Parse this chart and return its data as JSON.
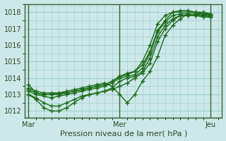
{
  "bg_color": "#cce8e8",
  "grid_color": "#99cccc",
  "line_color": "#1a6b1a",
  "marker": "+",
  "marker_size": 5,
  "linewidth": 1.0,
  "ylabel_ticks": [
    1012,
    1013,
    1014,
    1015,
    1016,
    1017,
    1018
  ],
  "ylim": [
    1011.6,
    1018.5
  ],
  "xlabel": "Pression niveau de la mer( hPa )",
  "xtick_labels": [
    "Mar",
    "Mer",
    "Jeu"
  ],
  "xtick_positions": [
    0,
    12,
    24
  ],
  "xlim": [
    -0.5,
    25.5
  ],
  "num_points": 25,
  "series": [
    [
      1013.6,
      1013.1,
      1013.0,
      1013.0,
      1013.0,
      1013.1,
      1013.2,
      1013.3,
      1013.4,
      1013.5,
      1013.6,
      1013.8,
      1014.1,
      1014.3,
      1014.4,
      1015.0,
      1016.0,
      1017.3,
      1017.8,
      1018.0,
      1018.0,
      1018.0,
      1018.0,
      1017.9,
      1017.9
    ],
    [
      1013.2,
      1013.0,
      1012.9,
      1012.8,
      1012.9,
      1013.0,
      1013.1,
      1013.2,
      1013.3,
      1013.4,
      1013.5,
      1013.7,
      1014.0,
      1014.1,
      1014.2,
      1014.6,
      1015.5,
      1016.8,
      1017.4,
      1017.8,
      1017.9,
      1017.9,
      1017.9,
      1017.8,
      1017.8
    ],
    [
      1013.0,
      1012.8,
      1012.5,
      1012.3,
      1012.3,
      1012.5,
      1012.7,
      1012.9,
      1013.0,
      1013.1,
      1013.2,
      1013.4,
      1013.8,
      1014.0,
      1014.1,
      1014.4,
      1015.2,
      1016.5,
      1017.2,
      1017.6,
      1017.8,
      1017.8,
      1017.8,
      1017.8,
      1017.7
    ],
    [
      1013.0,
      1012.7,
      1012.2,
      1012.0,
      1012.0,
      1012.2,
      1012.5,
      1012.8,
      1013.0,
      1013.1,
      1013.2,
      1013.3,
      1013.5,
      1013.7,
      1014.0,
      1014.3,
      1014.9,
      1016.2,
      1017.0,
      1017.5,
      1017.8,
      1017.8,
      1017.8,
      1017.7,
      1017.7
    ],
    [
      1013.4,
      1013.2,
      1013.1,
      1013.1,
      1013.1,
      1013.1,
      1013.2,
      1013.3,
      1013.4,
      1013.5,
      1013.6,
      1013.8,
      1014.1,
      1014.2,
      1014.4,
      1014.8,
      1015.6,
      1016.9,
      1017.5,
      1018.0,
      1018.1,
      1018.1,
      1018.0,
      1018.0,
      1017.9
    ],
    [
      1013.3,
      1013.1,
      1013.0,
      1013.0,
      1013.1,
      1013.2,
      1013.3,
      1013.4,
      1013.5,
      1013.6,
      1013.7,
      1013.5,
      1013.0,
      1012.5,
      1013.0,
      1013.8,
      1014.4,
      1015.3,
      1016.6,
      1017.2,
      1017.6,
      1017.9,
      1017.9,
      1017.9,
      1017.8
    ]
  ]
}
